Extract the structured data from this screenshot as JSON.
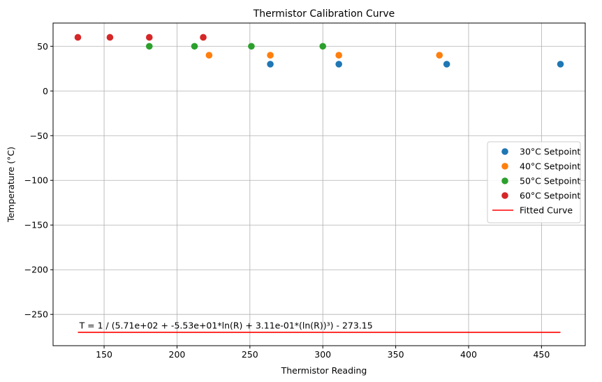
{
  "chart_data": {
    "type": "scatter",
    "title": "Thermistor Calibration Curve",
    "xlabel": "Thermistor Reading",
    "ylabel": "Temperature (°C)",
    "xlim": [
      115,
      480
    ],
    "ylim": [
      -285,
      76
    ],
    "xticks": [
      150,
      200,
      250,
      300,
      350,
      400,
      450
    ],
    "yticks": [
      50,
      0,
      -50,
      -100,
      -150,
      -200,
      -250
    ],
    "ytick_labels": [
      "50",
      "0",
      "−50",
      "−100",
      "−150",
      "−200",
      "−250"
    ],
    "grid": true,
    "legend_position": "center-right",
    "series": [
      {
        "name": "30°C Setpoint",
        "color": "#1f77b4",
        "x": [
          264,
          311,
          385,
          463
        ],
        "y": [
          30,
          30,
          30,
          30
        ]
      },
      {
        "name": "40°C Setpoint",
        "color": "#ff7f0e",
        "x": [
          222,
          264,
          311,
          380
        ],
        "y": [
          40,
          40,
          40,
          40
        ]
      },
      {
        "name": "50°C Setpoint",
        "color": "#2ca02c",
        "x": [
          181,
          212,
          251,
          300
        ],
        "y": [
          50,
          50,
          50,
          50
        ]
      },
      {
        "name": "60°C Setpoint",
        "color": "#d62728",
        "x": [
          132,
          154,
          181,
          218
        ],
        "y": [
          60,
          60,
          60,
          60
        ]
      }
    ],
    "fitted_curve": {
      "name": "Fitted Curve",
      "color": "#ff0000",
      "x": [
        132,
        463
      ],
      "y": [
        -270,
        -270
      ]
    },
    "annotation": {
      "text": "T = 1 / (5.71e+02 + -5.53e+01*ln(R) + 3.11e-01*(ln(R))³) - 273.15",
      "x": 133,
      "y": -266
    }
  }
}
